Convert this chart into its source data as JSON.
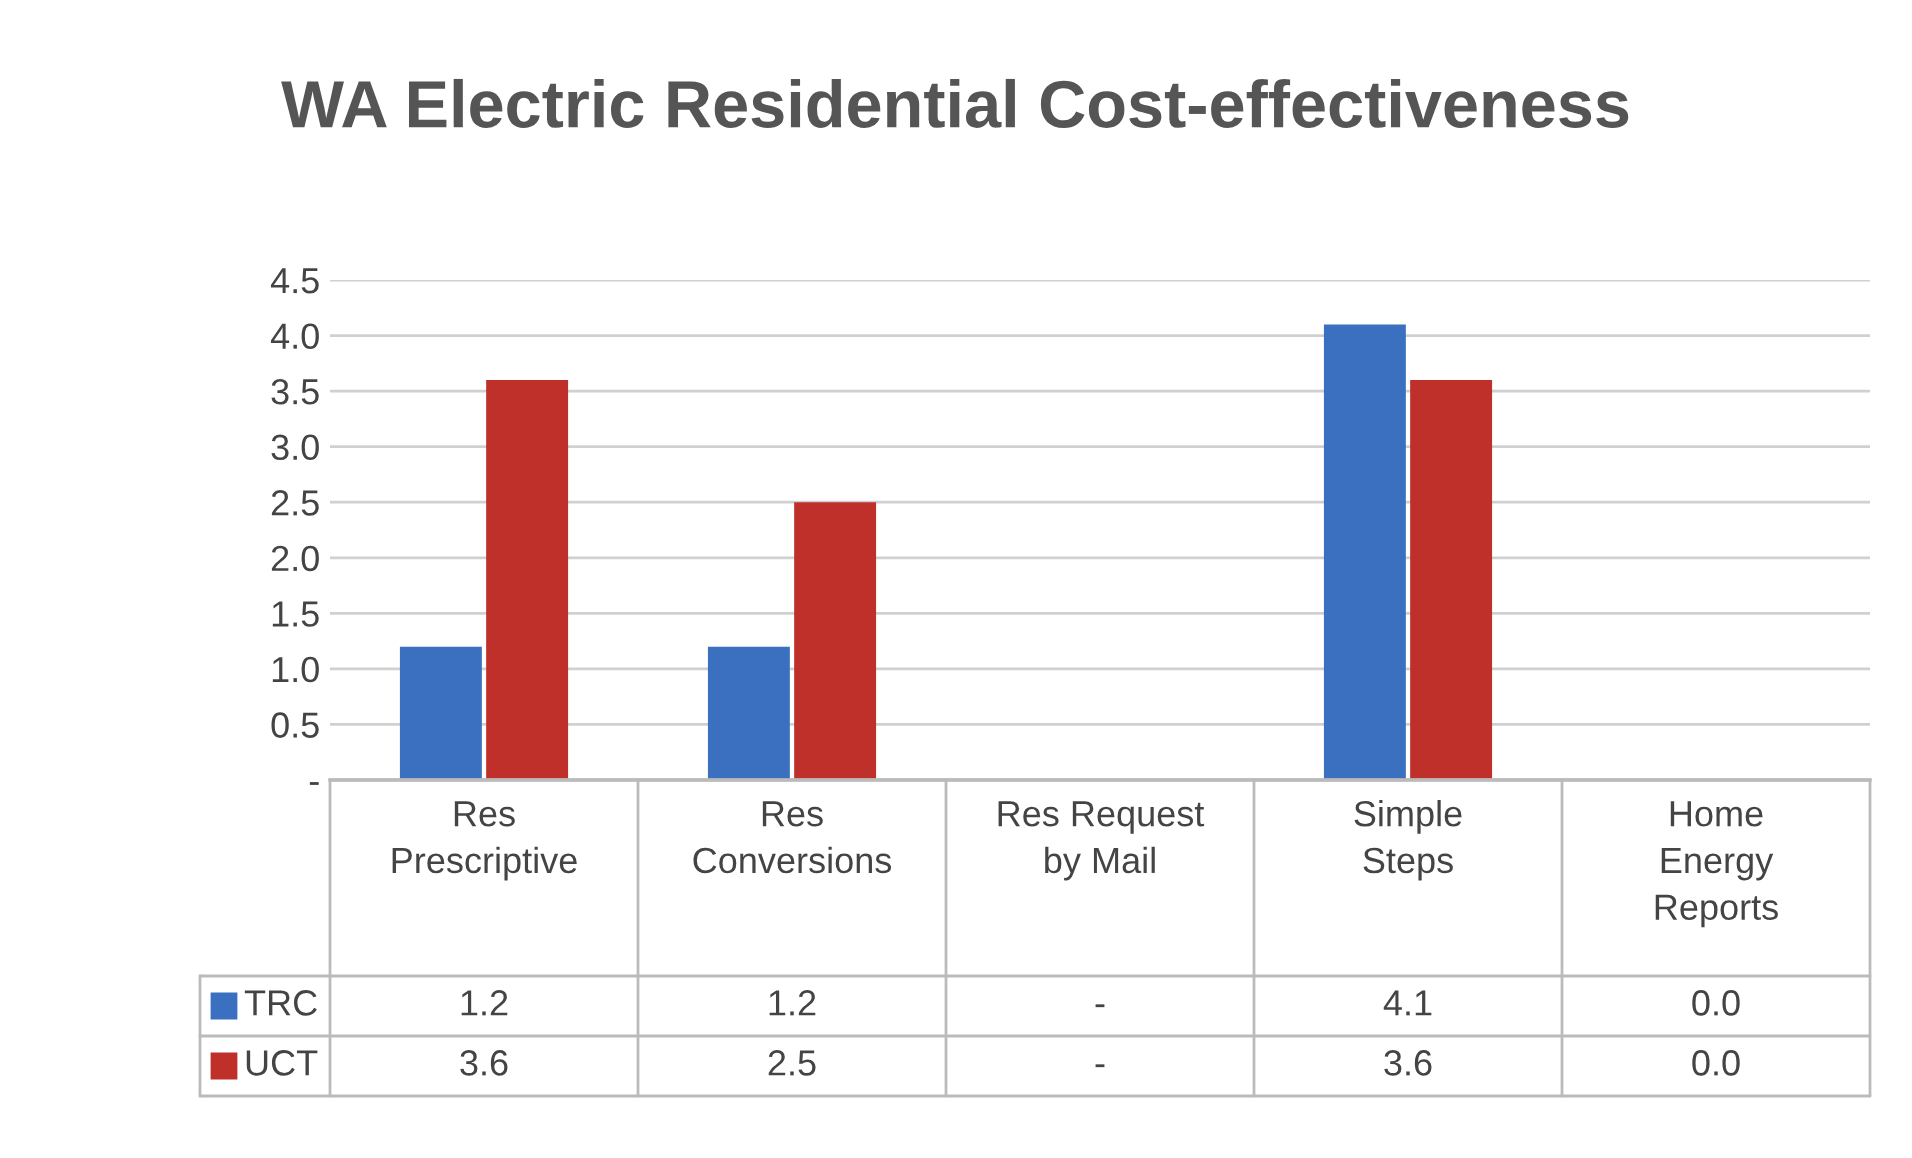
{
  "chart_data": {
    "type": "bar",
    "title": "WA Electric Residential Cost-effectiveness",
    "categories": [
      "Res\nPrescriptive",
      "Res\nConversions",
      "Res Request\nby Mail",
      "Simple\nSteps",
      "Home\nEnergy\nReports"
    ],
    "series": [
      {
        "name": "TRC",
        "color": "#3b6fc0",
        "values": [
          1.2,
          1.2,
          0,
          4.1,
          0.0
        ],
        "value_labels": [
          "1.2",
          "1.2",
          "-",
          "4.1",
          "0.0"
        ]
      },
      {
        "name": "UCT",
        "color": "#c0302b",
        "values": [
          3.6,
          2.5,
          0,
          3.6,
          0.0
        ],
        "value_labels": [
          "3.6",
          "2.5",
          "-",
          "3.6",
          "0.0"
        ]
      }
    ],
    "ylim": [
      0,
      4.5
    ],
    "yticks": [
      {
        "value": 0,
        "label": "-"
      },
      {
        "value": 0.5,
        "label": "0.5"
      },
      {
        "value": 1.0,
        "label": "1.0"
      },
      {
        "value": 1.5,
        "label": "1.5"
      },
      {
        "value": 2.0,
        "label": "2.0"
      },
      {
        "value": 2.5,
        "label": "2.5"
      },
      {
        "value": 3.0,
        "label": "3.0"
      },
      {
        "value": 3.5,
        "label": "3.5"
      },
      {
        "value": 4.0,
        "label": "4.0"
      },
      {
        "value": 4.5,
        "label": "4.5"
      }
    ],
    "grid": "y",
    "legend": "bottom left"
  }
}
